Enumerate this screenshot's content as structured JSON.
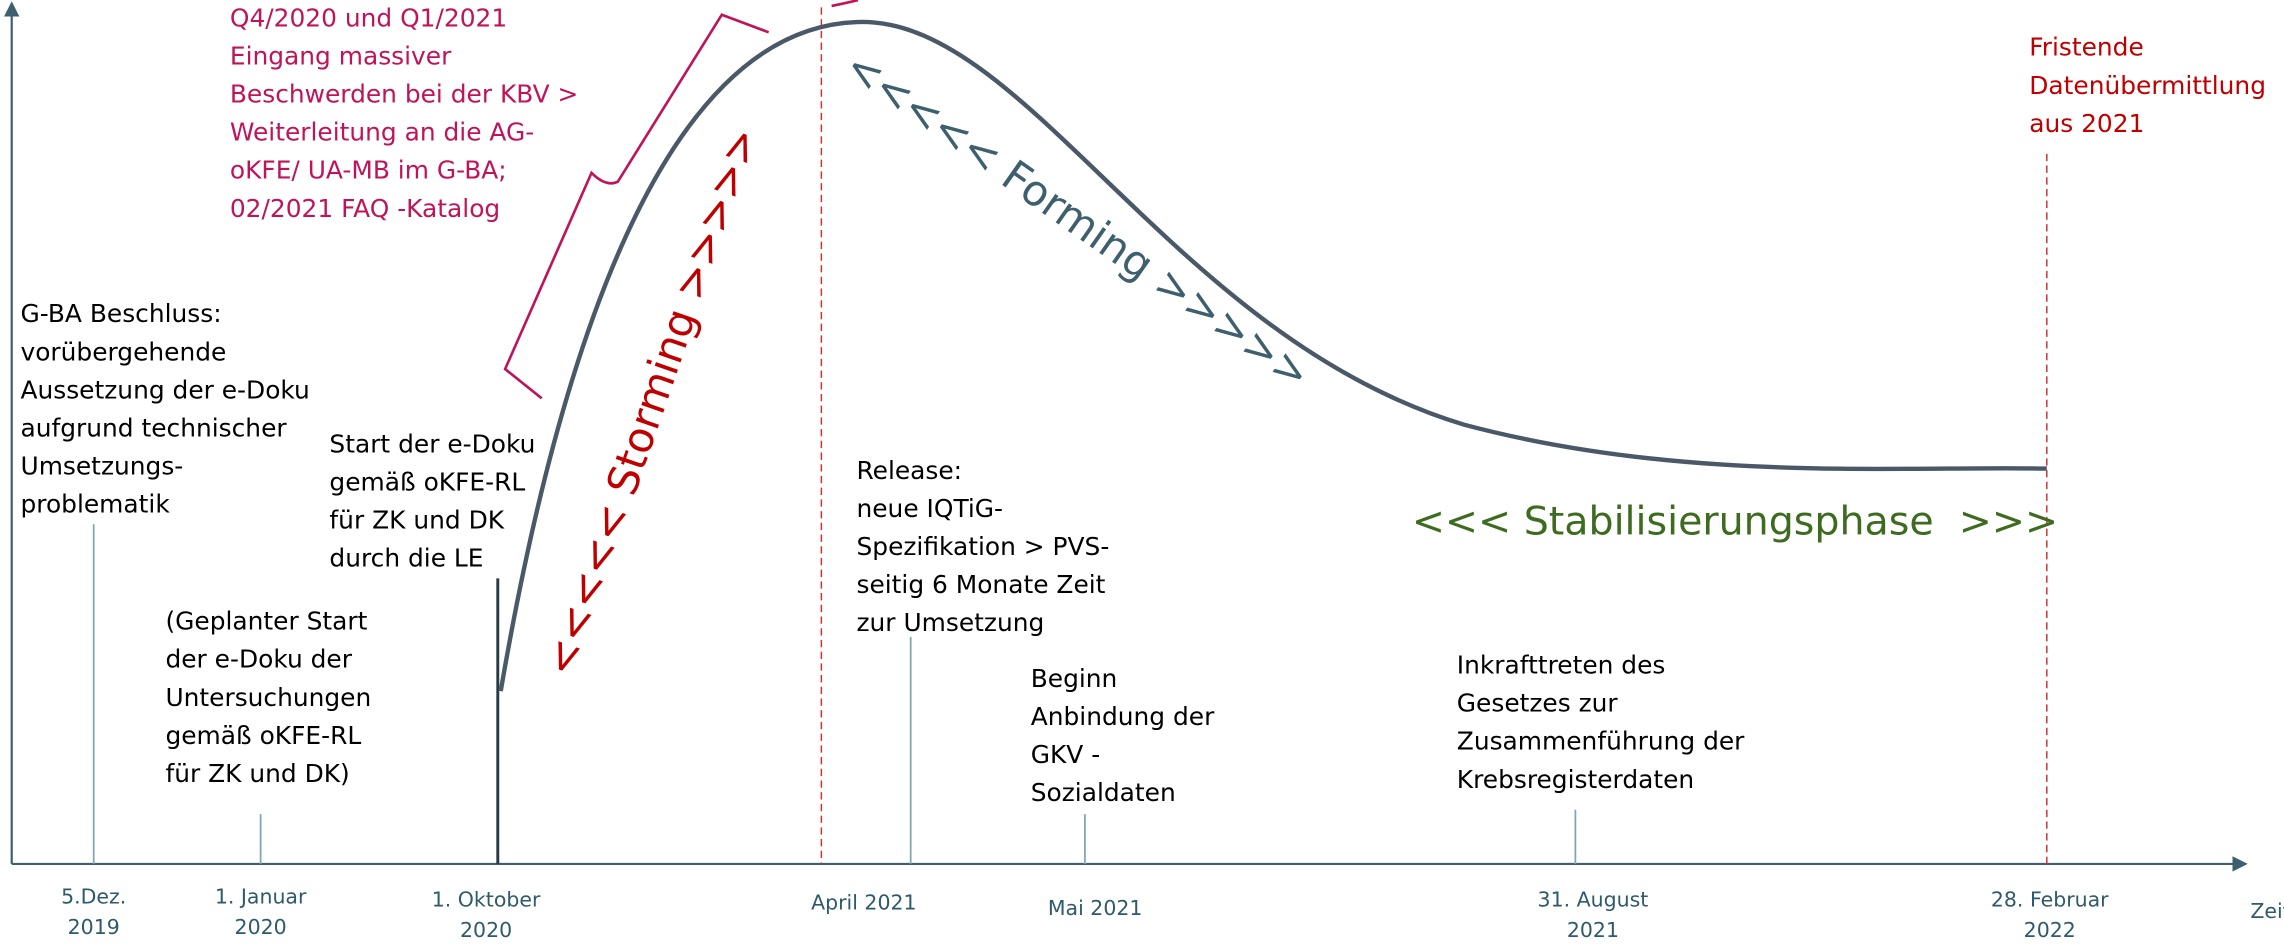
{
  "axis": {
    "x_label": "Zeit"
  },
  "dates": [
    {
      "lines": [
        "5.Dez.",
        "2019"
      ]
    },
    {
      "lines": [
        "1. Januar",
        "2020"
      ]
    },
    {
      "lines": [
        "1. Oktober",
        "2020"
      ]
    },
    {
      "lines": [
        "April 2021"
      ]
    },
    {
      "lines": [
        "Mai 2021"
      ]
    },
    {
      "lines": [
        "31. August",
        "2021"
      ]
    },
    {
      "lines": [
        "28. Februar",
        "2022"
      ]
    }
  ],
  "annotations": [
    {
      "lines": [
        "G-BA Beschluss:",
        "vorübergehende",
        "Aussetzung der e-Doku",
        "aufgrund technischer",
        "Umsetzungs-",
        "problematik"
      ]
    },
    {
      "lines": [
        "(Geplanter Start",
        "der e-Doku der",
        "Untersuchungen",
        "gemäß oKFE-RL",
        "für ZK und DK)"
      ]
    },
    {
      "lines": [
        "Start der e-Doku",
        "gemäß oKFE-RL",
        "für ZK und DK",
        "durch die LE"
      ]
    },
    {
      "lines": [
        "Q4/2020 und Q1/2021",
        "Eingang massiver",
        "Beschwerden bei der KBV >",
        "Weiterleitung an die AG-",
        "oKFE/ UA-MB im G-BA;",
        "02/2021 FAQ -Katalog"
      ]
    },
    {
      "lines": [
        "Release:",
        "neue IQTiG-",
        "Spezifikation > PVS-",
        "seitig 6 Monate Zeit",
        "zur Umsetzung"
      ]
    },
    {
      "lines": [
        "Beginn",
        "Anbindung der",
        "GKV -",
        "Sozialdaten"
      ]
    },
    {
      "lines": [
        "Inkrafttreten des",
        "Gesetzes zur",
        "Zusammenführung der",
        "Krebsregisterdaten"
      ]
    },
    {
      "lines": [
        "Fristende",
        "Datenübermittlung",
        "aus 2021"
      ]
    }
  ],
  "phases": [
    "<<<<< Storming >>>>>",
    "<<<<< Forming >>>>>",
    "<<< Stabilisierungsphase  >>>"
  ]
}
